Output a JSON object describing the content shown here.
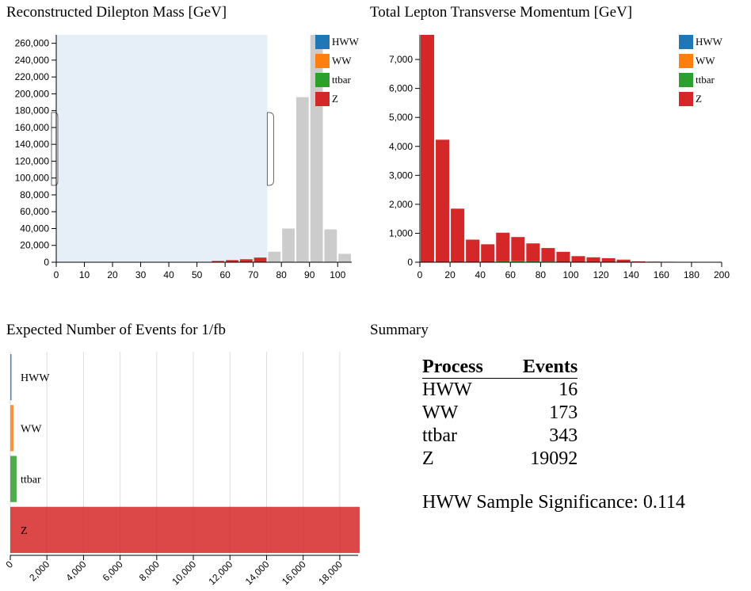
{
  "colors": {
    "HWW": "#1f77b4",
    "WW": "#ff7f0e",
    "ttbar": "#2ca02c",
    "Z": "#d62728",
    "inactive": "#cccccc",
    "brush": "#e6eef7"
  },
  "legend": [
    "HWW",
    "WW",
    "ttbar",
    "Z"
  ],
  "chart_data": [
    {
      "id": "mass",
      "type": "bar",
      "title": "Reconstructed Dilepton Mass [GeV]",
      "xlim": [
        0,
        105
      ],
      "xticks": [
        0,
        10,
        20,
        30,
        40,
        50,
        60,
        70,
        80,
        90,
        100
      ],
      "ylim": [
        0,
        270000
      ],
      "yticks": [
        0,
        20000,
        40000,
        60000,
        80000,
        100000,
        120000,
        140000,
        160000,
        180000,
        200000,
        220000,
        240000,
        260000
      ],
      "bin_width": 5,
      "brush_selection": [
        0,
        75
      ],
      "bins": [
        {
          "x": 55,
          "value": 1500,
          "selected": true
        },
        {
          "x": 60,
          "value": 2500,
          "selected": true
        },
        {
          "x": 65,
          "value": 3500,
          "selected": true
        },
        {
          "x": 70,
          "value": 5500,
          "selected": true
        },
        {
          "x": 75,
          "value": 12500,
          "selected": false
        },
        {
          "x": 80,
          "value": 40000,
          "selected": false
        },
        {
          "x": 85,
          "value": 196000,
          "selected": false
        },
        {
          "x": 90,
          "value": 270000,
          "selected": false
        },
        {
          "x": 95,
          "value": 39000,
          "selected": false
        },
        {
          "x": 100,
          "value": 10000,
          "selected": false
        }
      ]
    },
    {
      "id": "pt",
      "type": "bar",
      "title": "Total Lepton Transverse Momentum [GeV]",
      "xlim": [
        0,
        200
      ],
      "xticks": [
        0,
        20,
        40,
        60,
        80,
        100,
        120,
        140,
        160,
        180,
        200
      ],
      "ylim": [
        0,
        7850
      ],
      "yticks": [
        0,
        1000,
        2000,
        3000,
        4000,
        5000,
        6000,
        7000
      ],
      "bin_width": 10,
      "bins": [
        {
          "x": 0,
          "Z": 7850,
          "ttbar": 0
        },
        {
          "x": 10,
          "Z": 4230,
          "ttbar": 0
        },
        {
          "x": 20,
          "Z": 1850,
          "ttbar": 0
        },
        {
          "x": 30,
          "Z": 780,
          "ttbar": 0
        },
        {
          "x": 40,
          "Z": 620,
          "ttbar": 0
        },
        {
          "x": 50,
          "Z": 980,
          "ttbar": 40
        },
        {
          "x": 60,
          "Z": 820,
          "ttbar": 50
        },
        {
          "x": 70,
          "Z": 620,
          "ttbar": 30
        },
        {
          "x": 80,
          "Z": 470,
          "ttbar": 20
        },
        {
          "x": 90,
          "Z": 350,
          "ttbar": 10
        },
        {
          "x": 100,
          "Z": 210,
          "ttbar": 0
        },
        {
          "x": 110,
          "Z": 170,
          "ttbar": 0
        },
        {
          "x": 120,
          "Z": 140,
          "ttbar": 0
        },
        {
          "x": 130,
          "Z": 90,
          "ttbar": 0
        },
        {
          "x": 140,
          "Z": 30,
          "ttbar": 0
        },
        {
          "x": 150,
          "Z": 20,
          "ttbar": 0
        },
        {
          "x": 160,
          "Z": 15,
          "ttbar": 0
        },
        {
          "x": 170,
          "Z": 10,
          "ttbar": 0
        },
        {
          "x": 180,
          "Z": 8,
          "ttbar": 0
        },
        {
          "x": 190,
          "Z": 5,
          "ttbar": 0
        }
      ]
    },
    {
      "id": "events",
      "type": "bar",
      "orientation": "horizontal",
      "title": "Expected Number of Events for 1/fb",
      "categories": [
        "HWW",
        "WW",
        "ttbar",
        "Z"
      ],
      "values": [
        16,
        173,
        343,
        19092
      ],
      "xlim": [
        0,
        19000
      ],
      "xticks": [
        0,
        2000,
        4000,
        6000,
        8000,
        10000,
        12000,
        14000,
        16000,
        18000
      ],
      "grid": true
    }
  ],
  "summary": {
    "title": "Summary",
    "headers": [
      "Process",
      "Events"
    ],
    "rows": [
      {
        "process": "HWW",
        "events": "16"
      },
      {
        "process": "WW",
        "events": "173"
      },
      {
        "process": "ttbar",
        "events": "343"
      },
      {
        "process": "Z",
        "events": "19092"
      }
    ],
    "significance_label": "HWW Sample Significance:",
    "significance_value": "0.114"
  }
}
